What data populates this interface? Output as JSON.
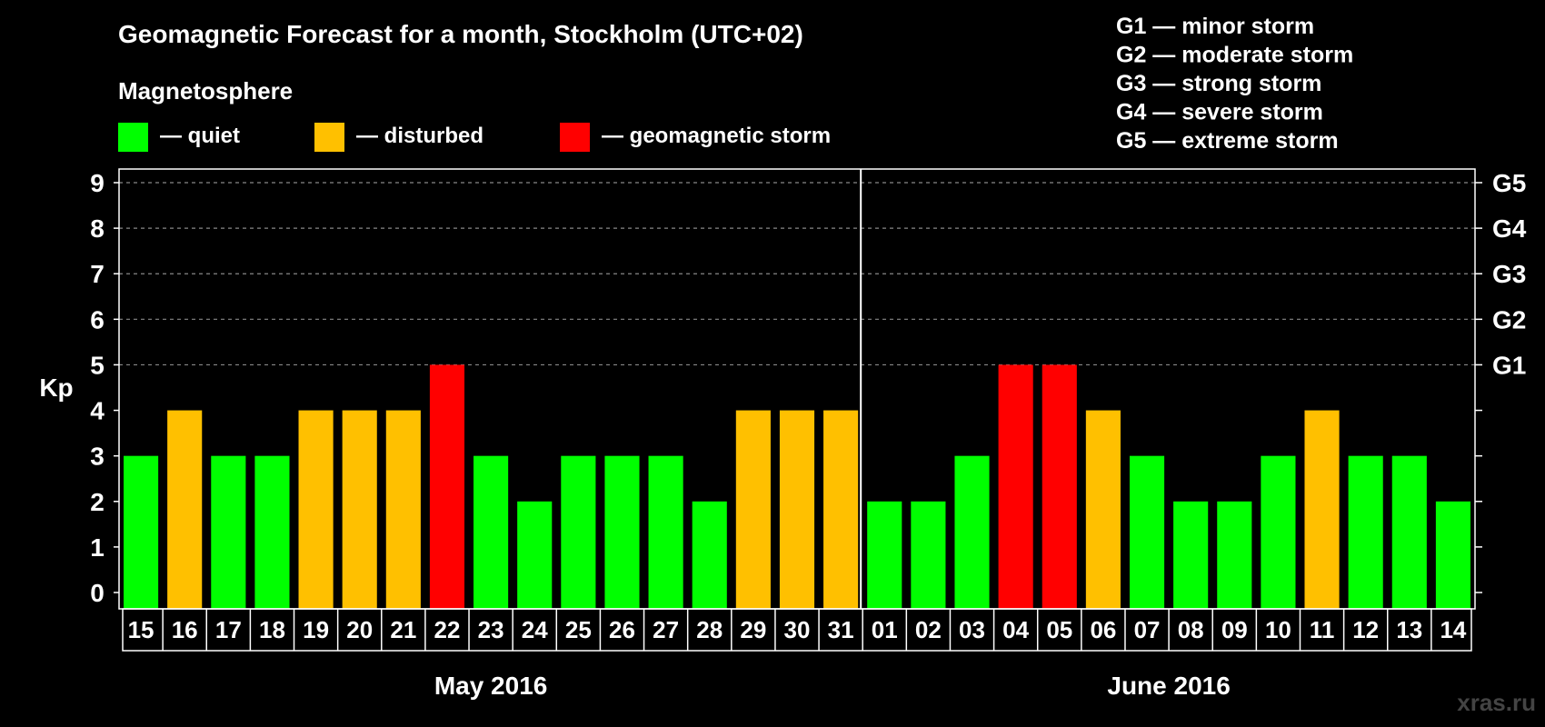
{
  "chart_data": {
    "type": "bar",
    "title": "Geomagnetic Forecast for a month, Stockholm (UTC+02)",
    "legend_title": "Magnetosphere",
    "legend": [
      {
        "key": "quiet",
        "label": "— quiet",
        "color": "#00ff00"
      },
      {
        "key": "disturbed",
        "label": "— disturbed",
        "color": "#ffc000"
      },
      {
        "key": "storm",
        "label": "— geomagnetic storm",
        "color": "#ff0000"
      }
    ],
    "storm_scale": [
      "G1 — minor storm",
      "G2 — moderate storm",
      "G3 — strong storm",
      "G4 — severe storm",
      "G5 — extreme storm"
    ],
    "ylabel": "Kp",
    "ylim": [
      0,
      9
    ],
    "yticks": [
      "0",
      "1",
      "2",
      "3",
      "4",
      "5",
      "6",
      "7",
      "8",
      "9"
    ],
    "right_axis_labels": [
      {
        "value": 5,
        "label": "G1"
      },
      {
        "value": 6,
        "label": "G2"
      },
      {
        "value": 7,
        "label": "G3"
      },
      {
        "value": 8,
        "label": "G4"
      },
      {
        "value": 9,
        "label": "G5"
      }
    ],
    "grid": "dashed horizontal at 5-9",
    "categories": [
      "15",
      "16",
      "17",
      "18",
      "19",
      "20",
      "21",
      "22",
      "23",
      "24",
      "25",
      "26",
      "27",
      "28",
      "29",
      "30",
      "31",
      "01",
      "02",
      "03",
      "04",
      "05",
      "06",
      "07",
      "08",
      "09",
      "10",
      "11",
      "12",
      "13",
      "14"
    ],
    "values": [
      3,
      4,
      3,
      3,
      4,
      4,
      4,
      5,
      3,
      2,
      3,
      3,
      3,
      2,
      4,
      4,
      4,
      2,
      2,
      3,
      5,
      5,
      4,
      3,
      2,
      2,
      3,
      4,
      3,
      3,
      2
    ],
    "months": [
      {
        "label": "May 2016",
        "start_index": 0,
        "end_index": 16
      },
      {
        "label": "June 2016",
        "start_index": 17,
        "end_index": 30
      }
    ]
  },
  "watermark": "xras.ru"
}
